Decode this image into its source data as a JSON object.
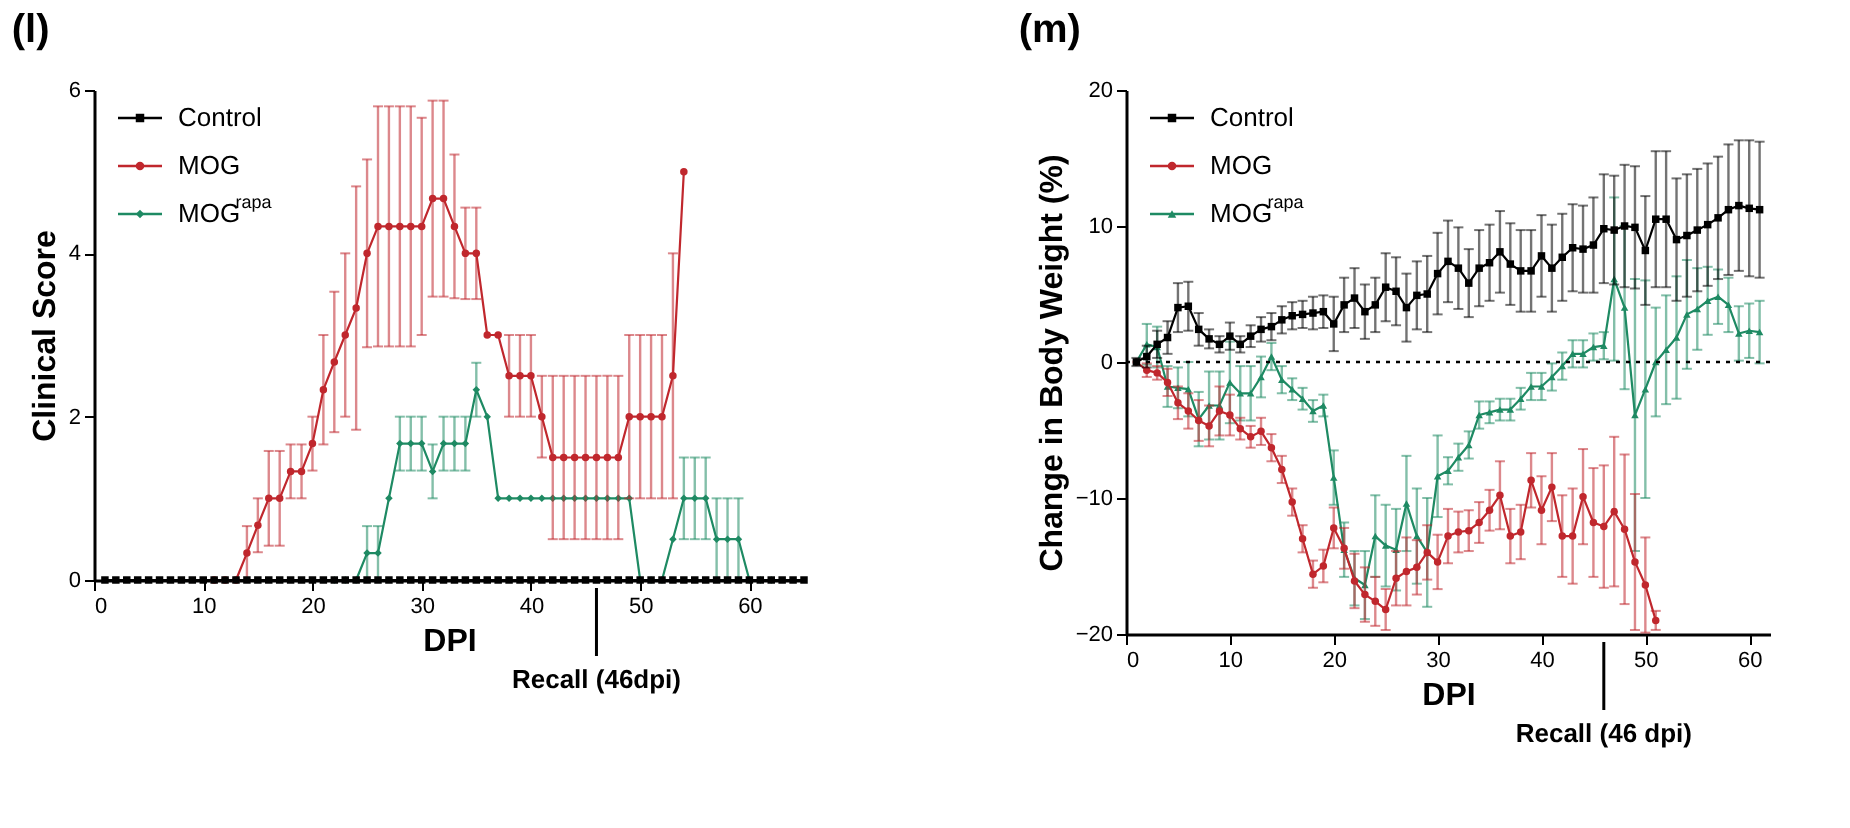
{
  "chart_data": [
    {
      "type": "line",
      "title": "(l)",
      "xlabel": "DPI",
      "ylabel": "Clinical Score",
      "legend": "top left",
      "xlim": [
        0,
        65
      ],
      "xticks": [
        0,
        10,
        20,
        30,
        40,
        50,
        60
      ],
      "ylim": [
        0,
        6
      ],
      "yticks": [
        0,
        2,
        4,
        6
      ],
      "x": [
        1,
        2,
        3,
        4,
        5,
        6,
        7,
        8,
        9,
        10,
        11,
        12,
        13,
        14,
        15,
        16,
        17,
        18,
        19,
        20,
        21,
        22,
        23,
        24,
        25,
        26,
        27,
        28,
        29,
        30,
        31,
        32,
        33,
        34,
        35,
        36,
        37,
        38,
        39,
        40,
        41,
        42,
        43,
        44,
        45,
        46,
        47,
        48,
        49,
        50,
        51,
        52,
        53,
        54,
        55,
        56,
        57,
        58,
        59,
        60,
        61,
        62,
        63,
        64,
        65
      ],
      "annotations": [
        {
          "text": "Recall (46dpi)",
          "x": 46
        }
      ],
      "series": [
        {
          "name": "Control",
          "color": "#000000",
          "marker": "square",
          "values": [
            0,
            0,
            0,
            0,
            0,
            0,
            0,
            0,
            0,
            0,
            0,
            0,
            0,
            0,
            0,
            0,
            0,
            0,
            0,
            0,
            0,
            0,
            0,
            0,
            0,
            0,
            0,
            0,
            0,
            0,
            0,
            0,
            0,
            0,
            0,
            0,
            0,
            0,
            0,
            0,
            0,
            0,
            0,
            0,
            0,
            0,
            0,
            0,
            0,
            0,
            0,
            0,
            0,
            0,
            0,
            0,
            0,
            0,
            0,
            0,
            0,
            0,
            0,
            0,
            0
          ]
        },
        {
          "name": "MOG",
          "color": "#c0272d",
          "marker": "circle",
          "values": [
            null,
            null,
            null,
            null,
            null,
            null,
            null,
            null,
            null,
            null,
            0,
            0,
            0,
            0.33,
            0.67,
            1,
            1,
            1.33,
            1.33,
            1.67,
            2.33,
            2.67,
            3,
            3.33,
            4,
            4.33,
            4.33,
            4.33,
            4.33,
            4.33,
            4.67,
            4.67,
            4.33,
            4,
            4,
            3,
            3,
            2.5,
            2.5,
            2.5,
            2,
            1.5,
            1.5,
            1.5,
            1.5,
            1.5,
            1.5,
            1.5,
            2,
            2,
            2,
            2,
            2.5,
            5,
            null,
            null,
            null,
            null,
            null,
            null,
            null,
            null,
            null,
            null,
            null
          ],
          "errors": [
            null,
            null,
            null,
            null,
            null,
            null,
            null,
            null,
            null,
            null,
            null,
            null,
            null,
            0.33,
            0.33,
            0.58,
            0.58,
            0.33,
            0.33,
            0.33,
            0.67,
            0.86,
            1.0,
            1.49,
            1.15,
            1.47,
            1.47,
            1.47,
            1.47,
            1.33,
            1.2,
            1.2,
            0.88,
            0.56,
            0.56,
            null,
            null,
            0.5,
            0.5,
            0.5,
            0.5,
            1,
            1,
            1,
            1,
            1,
            1,
            1,
            1,
            1,
            1,
            1,
            1.5,
            null,
            null,
            null,
            null,
            null,
            null,
            null,
            null,
            null,
            null,
            null,
            null
          ]
        },
        {
          "name": "MOG$^{rapa}$",
          "color": "#1e8a63",
          "marker": "diamond",
          "values": [
            null,
            null,
            null,
            null,
            null,
            null,
            null,
            null,
            null,
            null,
            null,
            null,
            null,
            null,
            null,
            null,
            null,
            null,
            null,
            null,
            null,
            0,
            0,
            0,
            0.33,
            0.33,
            1,
            1.67,
            1.67,
            1.67,
            1.33,
            1.67,
            1.67,
            1.67,
            2.33,
            2,
            1,
            1,
            1,
            1,
            1,
            1,
            1,
            1,
            1,
            1,
            1,
            1,
            1,
            0,
            0,
            0,
            0.5,
            1,
            1,
            1,
            0.5,
            0.5,
            0.5,
            0,
            0,
            0,
            null,
            null,
            null
          ],
          "errors": [
            null,
            null,
            null,
            null,
            null,
            null,
            null,
            null,
            null,
            null,
            null,
            null,
            null,
            null,
            null,
            null,
            null,
            null,
            null,
            null,
            null,
            null,
            null,
            null,
            0.33,
            0.33,
            null,
            0.33,
            0.33,
            0.33,
            0.33,
            0.33,
            0.33,
            0.33,
            0.33,
            null,
            null,
            null,
            null,
            null,
            null,
            null,
            null,
            null,
            null,
            null,
            null,
            null,
            null,
            null,
            null,
            null,
            null,
            0.5,
            0.5,
            0.5,
            0.5,
            0.5,
            0.5,
            null,
            null,
            null,
            null,
            null,
            null
          ]
        }
      ]
    },
    {
      "type": "line",
      "title": "(m)",
      "xlabel": "DPI",
      "ylabel": "Change in Body Weight (%)",
      "legend": "top left",
      "xlim": [
        0,
        62
      ],
      "xticks": [
        0,
        10,
        20,
        30,
        40,
        50,
        60
      ],
      "ylim": [
        -20,
        20
      ],
      "yticks": [
        -20,
        -10,
        0,
        10,
        20
      ],
      "x": [
        1,
        2,
        3,
        4,
        5,
        6,
        7,
        8,
        9,
        10,
        11,
        12,
        13,
        14,
        15,
        16,
        17,
        18,
        19,
        20,
        21,
        22,
        23,
        24,
        25,
        26,
        27,
        28,
        29,
        30,
        31,
        32,
        33,
        34,
        35,
        36,
        37,
        38,
        39,
        40,
        41,
        42,
        43,
        44,
        45,
        46,
        47,
        48,
        49,
        50,
        51,
        52,
        53,
        54,
        55,
        56,
        57,
        58,
        59,
        60,
        61
      ],
      "ref_lines": [
        {
          "axis": "y",
          "value": 0,
          "color": "#000000",
          "line_style": "dotted"
        }
      ],
      "annotations": [
        {
          "text": "Recall (46 dpi)",
          "x": 46
        }
      ],
      "series": [
        {
          "name": "Control",
          "color": "#000000",
          "marker": "square",
          "values": [
            0,
            0.4,
            1.3,
            1.8,
            4.0,
            4.1,
            2.4,
            1.7,
            1.3,
            1.9,
            1.3,
            1.9,
            2.4,
            2.6,
            3.1,
            3.4,
            3.5,
            3.6,
            3.7,
            2.8,
            4.2,
            4.7,
            3.7,
            4.2,
            5.5,
            5.2,
            4.0,
            4.9,
            5.0,
            6.5,
            7.4,
            6.9,
            5.8,
            6.9,
            7.3,
            8.1,
            7.2,
            6.7,
            6.7,
            7.8,
            6.9,
            7.7,
            8.4,
            8.3,
            8.6,
            9.8,
            9.7,
            10.0,
            9.9,
            8.2,
            10.5,
            10.5,
            9.0,
            9.3,
            9.7,
            10.1,
            10.6,
            11.2,
            11.5,
            11.3,
            11.2
          ],
          "errors": [
            0.3,
            0.8,
            1.0,
            1.2,
            1.8,
            1.8,
            1.2,
            0.7,
            0.6,
            1.0,
            0.6,
            0.8,
            0.9,
            1.0,
            1.0,
            1.0,
            1.0,
            1.2,
            1.2,
            2.0,
            2.0,
            2.2,
            2.0,
            2.0,
            2.5,
            2.5,
            2.5,
            2.5,
            2.8,
            3.0,
            3.0,
            3.0,
            2.5,
            2.8,
            2.8,
            3.0,
            3.0,
            3.0,
            3.0,
            3.0,
            3.2,
            3.2,
            3.2,
            3.2,
            3.5,
            4.0,
            4.0,
            4.5,
            4.5,
            4.0,
            5.0,
            5.0,
            4.5,
            4.5,
            4.5,
            4.5,
            4.5,
            4.8,
            4.8,
            5.0,
            5.0
          ]
        },
        {
          "name": "MOG",
          "color": "#c0272d",
          "marker": "circle",
          "values": [
            0,
            -0.6,
            -0.8,
            -1.5,
            -3.0,
            -3.6,
            -4.3,
            -4.7,
            -3.6,
            -3.9,
            -4.9,
            -5.5,
            -5.1,
            -6.3,
            -7.9,
            -10.3,
            -13.0,
            -15.6,
            -15.0,
            -12.2,
            -13.7,
            -16.1,
            -17.1,
            -17.6,
            -18.2,
            -15.9,
            -15.4,
            -15.1,
            -14.0,
            -14.7,
            -12.8,
            -12.5,
            -12.4,
            -11.8,
            -10.9,
            -9.8,
            -12.8,
            -12.5,
            -8.7,
            -10.9,
            -9.2,
            -12.8,
            -12.8,
            -9.9,
            -11.8,
            -12.1,
            -11.0,
            -12.3,
            -14.7,
            -16.4,
            -19.0,
            null,
            null,
            null,
            null,
            null,
            null,
            null,
            null,
            null,
            null
          ],
          "errors": [
            null,
            0.5,
            0.5,
            1.0,
            1.2,
            1.3,
            1.5,
            1.5,
            1.8,
            1.5,
            0.8,
            0.8,
            1.0,
            1.0,
            1.0,
            1.0,
            1.0,
            1.0,
            1.2,
            1.5,
            1.5,
            2.0,
            2.0,
            1.8,
            1.5,
            2.0,
            2.5,
            2.0,
            2.0,
            2.0,
            2.0,
            1.5,
            1.5,
            1.5,
            1.5,
            2.5,
            2.0,
            2.0,
            2.0,
            2.5,
            2.5,
            3.0,
            3.5,
            3.5,
            4.0,
            4.5,
            5.5,
            5.5,
            5.0,
            3.5,
            0.7,
            null,
            null,
            null,
            null,
            null,
            null,
            null,
            null,
            null,
            null
          ]
        },
        {
          "name": "MOG$^{rapa}$",
          "color": "#1e8a63",
          "marker": "triangle",
          "values": [
            0,
            1.3,
            1.1,
            -1.8,
            -1.9,
            -2.0,
            -4.2,
            -3.2,
            -3.2,
            -1.5,
            -2.3,
            -2.3,
            -1.1,
            0.4,
            -1.3,
            -2.0,
            -2.7,
            -3.6,
            -3.2,
            -8.5,
            -13.8,
            -15.9,
            -16.4,
            -12.8,
            -13.5,
            -13.8,
            -10.4,
            -12.8,
            -14.0,
            -8.4,
            -8.0,
            -7.0,
            -6.1,
            -3.9,
            -3.7,
            -3.5,
            -3.5,
            -2.7,
            -1.8,
            -1.8,
            -1.1,
            -0.3,
            0.6,
            0.6,
            1.1,
            1.2,
            6.1,
            4.0,
            -3.9,
            -2.0,
            0,
            0.9,
            1.8,
            3.5,
            3.9,
            4.5,
            4.8,
            4.2,
            2.1,
            2.3,
            2.2
          ],
          "errors": [
            null,
            1.5,
            1.5,
            1.5,
            1.5,
            2.0,
            2.0,
            2.5,
            2.5,
            3.0,
            2.0,
            2.0,
            1.5,
            1.0,
            1.0,
            0.8,
            0.8,
            0.8,
            0.8,
            2.0,
            2.0,
            2.0,
            2.5,
            3.0,
            3.0,
            3.0,
            3.5,
            3.5,
            4.0,
            3.0,
            1.0,
            1.0,
            1.0,
            1.0,
            0.8,
            0.8,
            0.8,
            0.8,
            1.0,
            1.0,
            1.0,
            1.0,
            1.0,
            1.0,
            1.0,
            1.0,
            6.0,
            6.0,
            10.0,
            8.0,
            4.0,
            4.0,
            4.5,
            4.0,
            3.0,
            2.5,
            2.0,
            2.0,
            2.0,
            2.0,
            2.3
          ]
        }
      ]
    }
  ]
}
